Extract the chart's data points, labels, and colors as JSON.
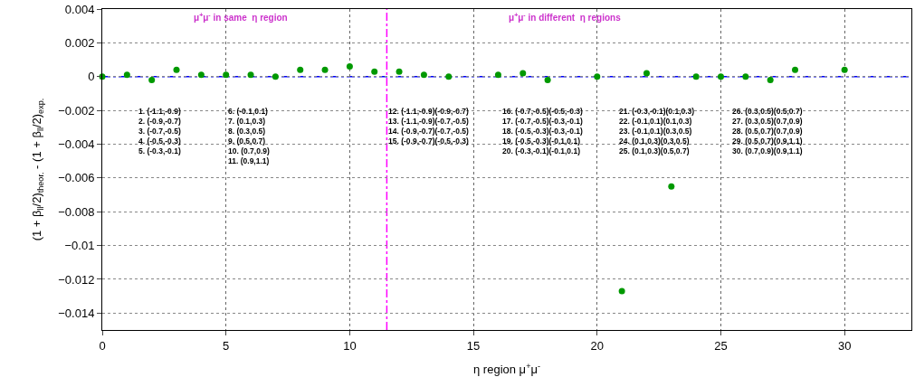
{
  "chart_data": {
    "type": "scatter",
    "xlabel": "η region μ$^{+}$μ$^{-}$",
    "ylabel": "(1 + β$_{ll}$/2)$_{theor.}$ - (1 + β$_{ll}$/2)$_{exp.}$",
    "x": [
      0,
      1,
      2,
      3,
      4,
      5,
      6,
      7,
      8,
      9,
      10,
      11,
      12,
      13,
      14,
      16,
      17,
      18,
      20,
      21,
      22,
      23,
      24,
      25,
      26,
      27,
      28,
      30
    ],
    "series": [
      {
        "color": "#009900",
        "values": [
          0,
          0.0001,
          -0.0002,
          0.0004,
          0.0001,
          0.0001,
          0.0001,
          0,
          0.0004,
          0.0004,
          0.0006,
          0.0003,
          0.0003,
          0.0001,
          0,
          0.0001,
          0.0002,
          -0.0002,
          0,
          -0.0127,
          0.0002,
          -0.0065,
          0,
          0,
          0,
          -0.0002,
          0.0004,
          0.0004
        ]
      }
    ],
    "xlim": [
      0,
      32.7
    ],
    "xticks": [
      0,
      5,
      10,
      15,
      20,
      25,
      30
    ],
    "ylim": [
      -0.015,
      0.004
    ],
    "yticks": [
      {
        "value": 0.004,
        "label": "0.004"
      },
      {
        "value": 0.002,
        "label": "0.002"
      },
      0,
      {
        "value": -0.002,
        "label": "−0.002"
      },
      {
        "value": -0.004,
        "label": "−0.004"
      },
      {
        "value": -0.006,
        "label": "−0.006"
      },
      {
        "value": -0.008,
        "label": "−0.008"
      },
      {
        "value": -0.01,
        "label": "−0.01"
      },
      {
        "value": -0.012,
        "label": "−0.012"
      },
      {
        "value": -0.014,
        "label": "−0.014"
      }
    ],
    "grid": true,
    "marker": "circle",
    "ref_lines": [
      {
        "axis": "y",
        "value": 0,
        "color": "#0000ff",
        "line_style": "dashdot"
      },
      {
        "axis": "x",
        "value": 11.5,
        "color": "#ff00ff",
        "line_style": "dashdot"
      }
    ],
    "annotations": [
      "μ$^{+}$μ$^{-}$ in same  η region",
      "μ$^{+}$μ$^{-}$ in different  η regions",
      "1. (-1.1,-0.9)\n2. (-0.9,-0.7)\n3. (-0.7,-0.5)\n4. (-0.5,-0.3)\n5. (-0.3,-0.1)",
      "6. (-0.1,0.1)\n7. (0.1,0.3)\n8. (0.3,0.5)\n9. (0.5,0.7)\n10. (0.7,0.9)\n11. (0.9,1.1)",
      "12. (-1.1,-0.9)(-0.9,-0.7)\n13. (-1.1,-0.9)(-0.7,-0.5)\n14. (-0.9,-0.7)(-0.7,-0.5)\n15. (-0.9,-0.7)(-0.5,-0.3)",
      "16. (-0.7,-0.5)(-0.5,-0.3)\n17. (-0.7,-0.5)(-0.3,-0.1)\n18. (-0.5,-0.3)(-0.3,-0.1)\n19. (-0.5,-0.3)(-0.1,0.1)\n20. (-0.3,-0.1)(-0.1,0.1)",
      "21. (-0.3,-0.1)(0.1,0.3)\n22. (-0.1,0.1)(0.1,0.3)\n23. (-0.1,0.1)(0.3,0.5)\n24. (0.1,0.3)(0.3,0.5)\n25. (0.1,0.3)(0.5,0.7)",
      "26. (0.3,0.5)(0.5,0.7)\n27. (0.3,0.5)(0.7,0.9)\n28. (0.5,0.7)(0.7,0.9)\n29. (0.5,0.7)(0.9,1.1)\n30. (0.7,0.9)(0.9,1.1)"
    ]
  }
}
